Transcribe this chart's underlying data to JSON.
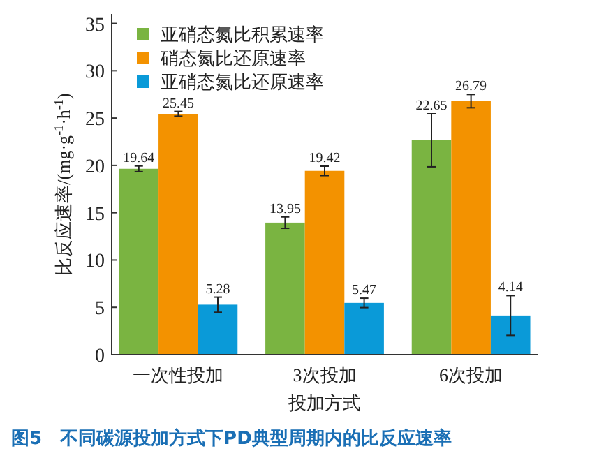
{
  "chart_data": {
    "type": "bar",
    "title": "图5　不同碳源投加方式下PD典型周期内的比反应速率",
    "xlabel": "投加方式",
    "ylabel": "比反应速率/(mg·g$^{-1}$·h$^{-1}$)",
    "categories": [
      "一次性投加",
      "3次投加",
      "6次投加"
    ],
    "series": [
      {
        "name": "亚硝态氮比积累速率",
        "color": "#7ab441",
        "values": [
          19.64,
          13.95,
          22.65
        ],
        "errors": [
          0.3,
          0.6,
          2.8
        ]
      },
      {
        "name": "硝态氮比还原速率",
        "color": "#f39200",
        "values": [
          25.45,
          19.42,
          26.79
        ],
        "errors": [
          0.25,
          0.5,
          0.7
        ]
      },
      {
        "name": "亚硝态氮比还原速率",
        "color": "#0a9ad8",
        "values": [
          5.28,
          5.47,
          4.14
        ],
        "errors": [
          0.8,
          0.5,
          2.1
        ]
      }
    ],
    "ylim": [
      0,
      36
    ],
    "yticks": [
      0,
      5,
      10,
      15,
      20,
      25,
      30,
      35
    ],
    "data_labels": true,
    "legend": "top left",
    "grid": false
  }
}
